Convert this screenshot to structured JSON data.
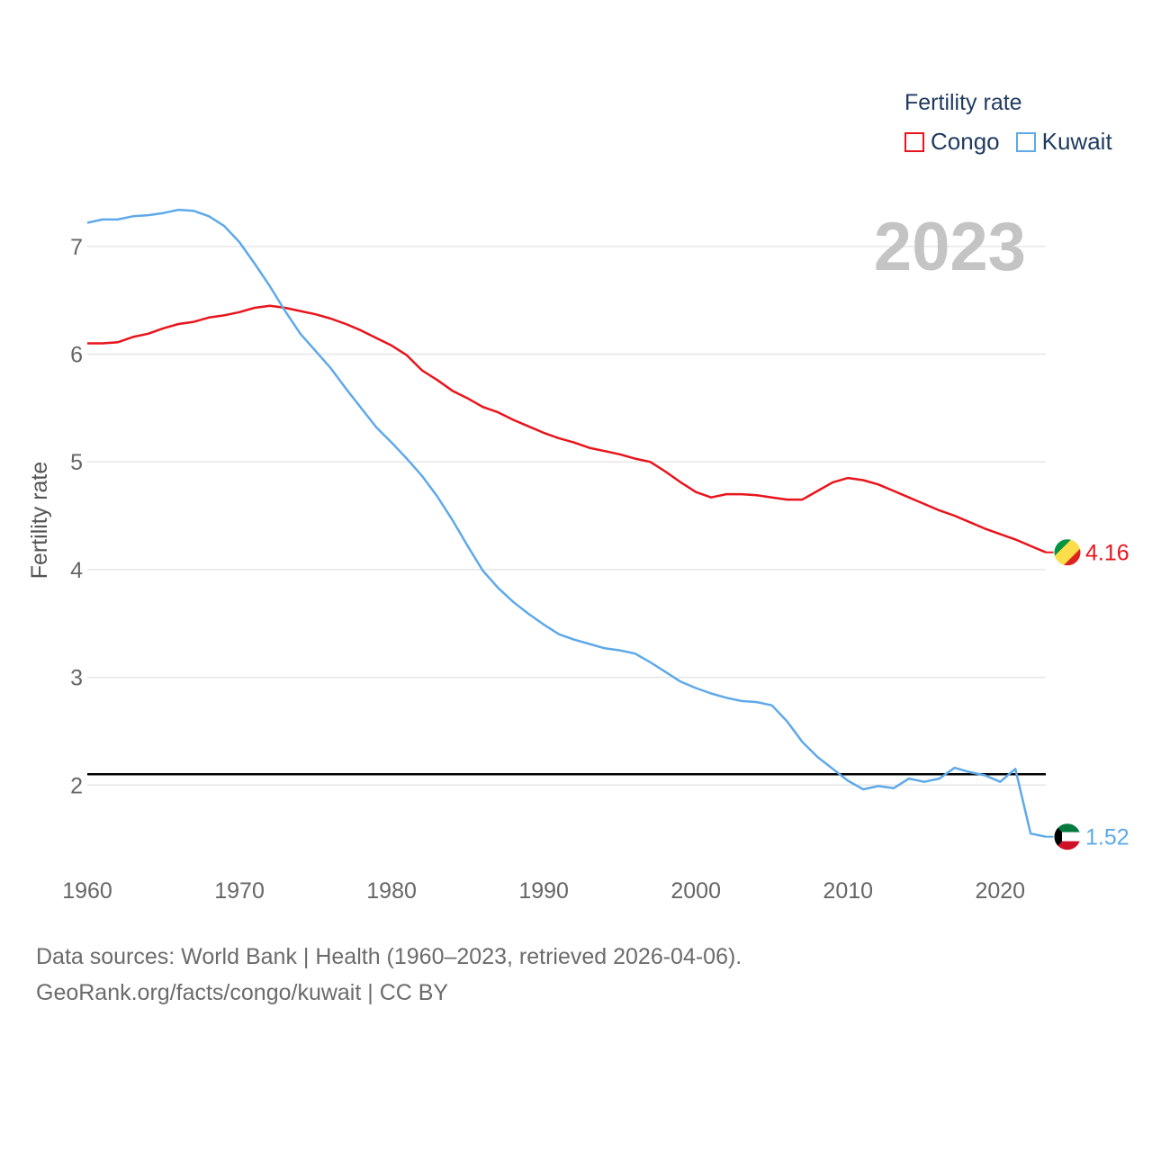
{
  "legend": {
    "title": "Fertility rate",
    "items": [
      {
        "label": "Congo",
        "color": "#e8141c"
      },
      {
        "label": "Kuwait",
        "color": "#5ea9e8"
      }
    ]
  },
  "source": {
    "line1": "Data sources: World Bank | Health (1960–2023, retrieved 2026-04-06).",
    "line2": "GeoRank.org/facts/congo/kuwait | CC BY"
  },
  "chart_data": {
    "type": "line",
    "year_label": "2023",
    "ylabel": "Fertility rate",
    "xlabel": "",
    "xlim": [
      1960,
      2023
    ],
    "ylim": [
      1.2,
      7.55
    ],
    "yticks": [
      2,
      3,
      4,
      5,
      6,
      7
    ],
    "xticks": [
      1960,
      1970,
      1980,
      1990,
      2000,
      2010,
      2020
    ],
    "reference_line": {
      "y": 2.1,
      "color": "#000000"
    },
    "x": [
      1960,
      1961,
      1962,
      1963,
      1964,
      1965,
      1966,
      1967,
      1968,
      1969,
      1970,
      1971,
      1972,
      1973,
      1974,
      1975,
      1976,
      1977,
      1978,
      1979,
      1980,
      1981,
      1982,
      1983,
      1984,
      1985,
      1986,
      1987,
      1988,
      1989,
      1990,
      1991,
      1992,
      1993,
      1994,
      1995,
      1996,
      1997,
      1998,
      1999,
      2000,
      2001,
      2002,
      2003,
      2004,
      2005,
      2006,
      2007,
      2008,
      2009,
      2010,
      2011,
      2012,
      2013,
      2014,
      2015,
      2016,
      2017,
      2018,
      2019,
      2020,
      2021,
      2022,
      2023
    ],
    "series": [
      {
        "name": "Congo",
        "color": "#e8141c",
        "end_label": "4.16",
        "values": [
          6.1,
          6.1,
          6.11,
          6.16,
          6.19,
          6.24,
          6.28,
          6.3,
          6.34,
          6.36,
          6.39,
          6.43,
          6.45,
          6.43,
          6.4,
          6.37,
          6.33,
          6.28,
          6.22,
          6.15,
          6.08,
          5.99,
          5.85,
          5.76,
          5.66,
          5.59,
          5.51,
          5.46,
          5.39,
          5.33,
          5.27,
          5.22,
          5.18,
          5.13,
          5.1,
          5.07,
          5.03,
          5.0,
          4.91,
          4.81,
          4.72,
          4.67,
          4.7,
          4.7,
          4.69,
          4.67,
          4.65,
          4.65,
          4.73,
          4.81,
          4.85,
          4.83,
          4.79,
          4.73,
          4.67,
          4.61,
          4.55,
          4.5,
          4.44,
          4.38,
          4.33,
          4.28,
          4.22,
          4.16
        ]
      },
      {
        "name": "Kuwait",
        "color": "#5ea9e8",
        "end_label": "1.52",
        "values": [
          7.22,
          7.25,
          7.25,
          7.28,
          7.29,
          7.31,
          7.34,
          7.33,
          7.28,
          7.19,
          7.04,
          6.84,
          6.63,
          6.4,
          6.19,
          6.03,
          5.87,
          5.68,
          5.5,
          5.32,
          5.18,
          5.03,
          4.87,
          4.68,
          4.46,
          4.22,
          3.99,
          3.83,
          3.7,
          3.59,
          3.49,
          3.4,
          3.35,
          3.31,
          3.27,
          3.25,
          3.22,
          3.14,
          3.05,
          2.96,
          2.9,
          2.85,
          2.81,
          2.78,
          2.77,
          2.74,
          2.59,
          2.4,
          2.26,
          2.15,
          2.04,
          1.96,
          1.99,
          1.97,
          2.06,
          2.03,
          2.06,
          2.16,
          2.12,
          2.09,
          2.03,
          2.15,
          1.55,
          1.52
        ]
      }
    ]
  }
}
